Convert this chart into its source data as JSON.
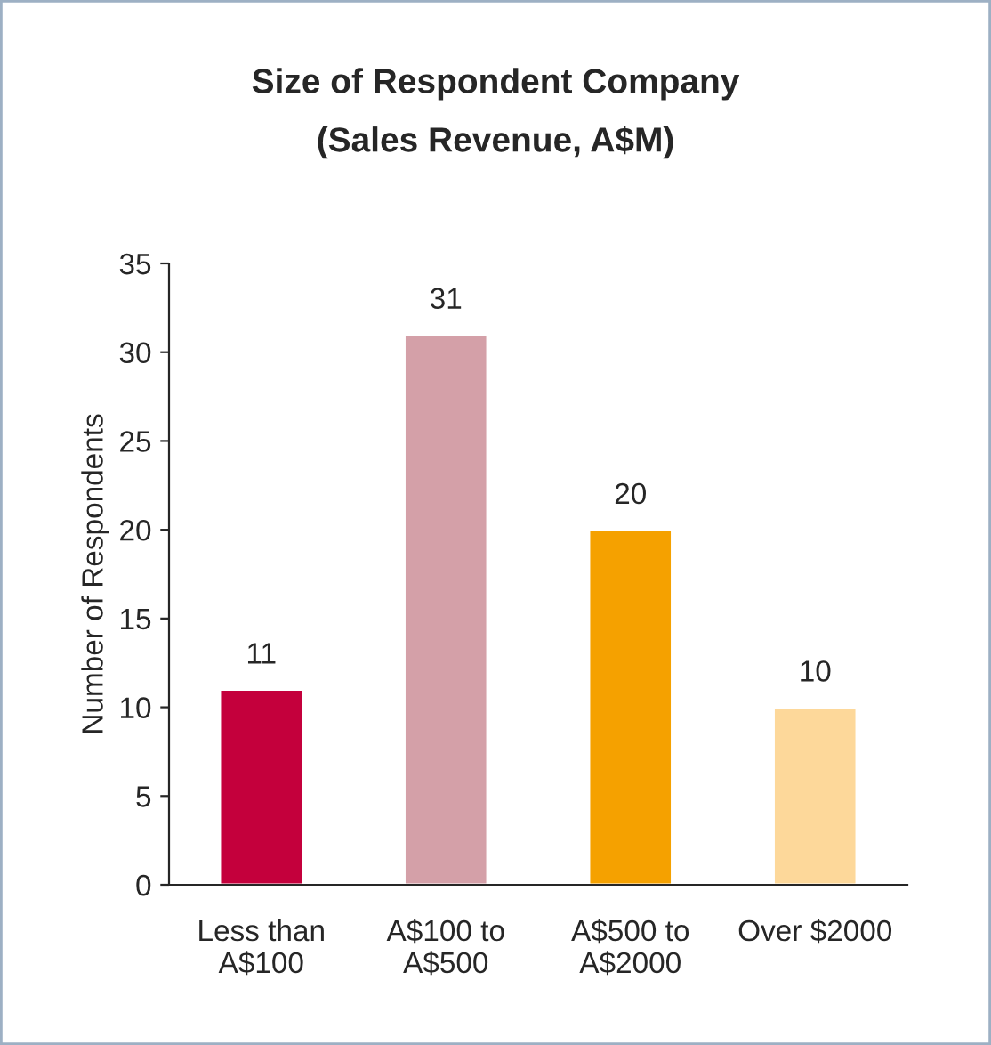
{
  "chart_data": {
    "type": "bar",
    "title": "Size of Respondent Company\n(Sales Revenue, A$M)",
    "ylabel": "Number of Respondents",
    "categories": [
      "Less than\nA$100",
      "A$100 to\nA$500",
      "A$500 to\nA$2000",
      "Over $2000"
    ],
    "values": [
      11,
      31,
      20,
      10
    ],
    "colors": [
      "#c4003c",
      "#d4a0a8",
      "#f5a100",
      "#fdd89a"
    ],
    "ylim": [
      0,
      35
    ],
    "yticks": [
      0,
      5,
      10,
      15,
      20,
      25,
      30,
      35
    ],
    "data_labels": true,
    "grid": false,
    "legend": false
  }
}
